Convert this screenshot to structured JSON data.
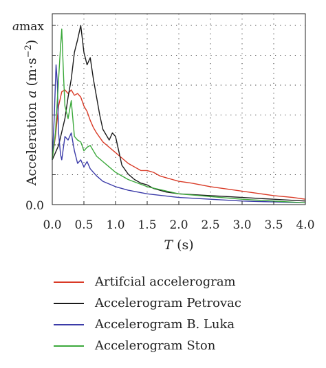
{
  "chart_data": {
    "type": "line",
    "title": "",
    "xlabel": {
      "symbol": "T",
      "unit": " (s)"
    },
    "ylabel": {
      "prefix": "Acceleration ",
      "symbol": "a",
      "unit_open": " (m·s",
      "unit_exp": "−2",
      "unit_close": ")"
    },
    "y_tick_labels": {
      "top": "a",
      "top_sub": "max",
      "bottom": "0.0"
    },
    "xlim": [
      0,
      4.0
    ],
    "ylim": [
      0,
      1
    ],
    "x_ticks": [
      "0.0",
      "0.5",
      "1.0",
      "1.5",
      "2.0",
      "2.5",
      "3.0",
      "3.5",
      "4.0"
    ],
    "grid": true,
    "legend_position": "bottom",
    "series": [
      {
        "name": "Artifcial accelerogram",
        "color": "#d93a26",
        "x": [
          0,
          0.05,
          0.1,
          0.15,
          0.2,
          0.25,
          0.3,
          0.35,
          0.4,
          0.45,
          0.5,
          0.55,
          0.6,
          0.65,
          0.7,
          0.8,
          0.9,
          1.0,
          1.1,
          1.2,
          1.3,
          1.4,
          1.5,
          1.6,
          1.7,
          1.8,
          2.0,
          2.2,
          2.5,
          2.8,
          3.0,
          3.3,
          3.5,
          3.8,
          4.0
        ],
        "y": [
          0.26,
          0.38,
          0.55,
          0.63,
          0.64,
          0.62,
          0.64,
          0.61,
          0.62,
          0.6,
          0.55,
          0.52,
          0.47,
          0.43,
          0.4,
          0.35,
          0.32,
          0.29,
          0.26,
          0.23,
          0.21,
          0.19,
          0.19,
          0.18,
          0.16,
          0.15,
          0.13,
          0.12,
          0.1,
          0.085,
          0.075,
          0.06,
          0.05,
          0.04,
          0.03
        ]
      },
      {
        "name": "Accelerogram Petrovac",
        "color": "#1a1a1a",
        "x": [
          0,
          0.1,
          0.2,
          0.25,
          0.3,
          0.35,
          0.4,
          0.45,
          0.5,
          0.55,
          0.6,
          0.65,
          0.7,
          0.75,
          0.8,
          0.9,
          0.95,
          1.0,
          1.05,
          1.1,
          1.2,
          1.3,
          1.4,
          1.5,
          1.6,
          1.8,
          2.0,
          2.5,
          3.0,
          3.5,
          4.0
        ],
        "y": [
          0.25,
          0.33,
          0.48,
          0.6,
          0.7,
          0.85,
          0.92,
          1.0,
          0.85,
          0.78,
          0.82,
          0.7,
          0.6,
          0.5,
          0.42,
          0.36,
          0.4,
          0.38,
          0.3,
          0.22,
          0.17,
          0.14,
          0.12,
          0.11,
          0.09,
          0.07,
          0.06,
          0.05,
          0.04,
          0.03,
          0.02
        ]
      },
      {
        "name": "Accelerogram B. Luka",
        "color": "#3b3ba8",
        "x": [
          0,
          0.03,
          0.06,
          0.08,
          0.1,
          0.13,
          0.15,
          0.2,
          0.25,
          0.3,
          0.35,
          0.4,
          0.45,
          0.5,
          0.55,
          0.6,
          0.7,
          0.8,
          1.0,
          1.2,
          1.5,
          2.0,
          2.5,
          3.0,
          3.5,
          4.0
        ],
        "y": [
          0.25,
          0.48,
          0.78,
          0.68,
          0.4,
          0.28,
          0.25,
          0.38,
          0.36,
          0.4,
          0.3,
          0.23,
          0.25,
          0.21,
          0.24,
          0.2,
          0.16,
          0.13,
          0.1,
          0.08,
          0.06,
          0.04,
          0.03,
          0.02,
          0.015,
          0.01
        ]
      },
      {
        "name": "Accelerogram Ston",
        "color": "#3aa83a",
        "x": [
          0,
          0.05,
          0.1,
          0.13,
          0.15,
          0.18,
          0.2,
          0.25,
          0.3,
          0.35,
          0.4,
          0.45,
          0.5,
          0.55,
          0.6,
          0.65,
          0.7,
          0.8,
          0.9,
          1.0,
          1.2,
          1.5,
          2.0,
          2.5,
          3.0,
          3.5,
          4.0
        ],
        "y": [
          0.25,
          0.4,
          0.7,
          0.88,
          0.98,
          0.7,
          0.55,
          0.48,
          0.58,
          0.38,
          0.36,
          0.35,
          0.3,
          0.32,
          0.33,
          0.3,
          0.27,
          0.24,
          0.21,
          0.18,
          0.14,
          0.1,
          0.06,
          0.045,
          0.03,
          0.02,
          0.01
        ]
      }
    ]
  }
}
